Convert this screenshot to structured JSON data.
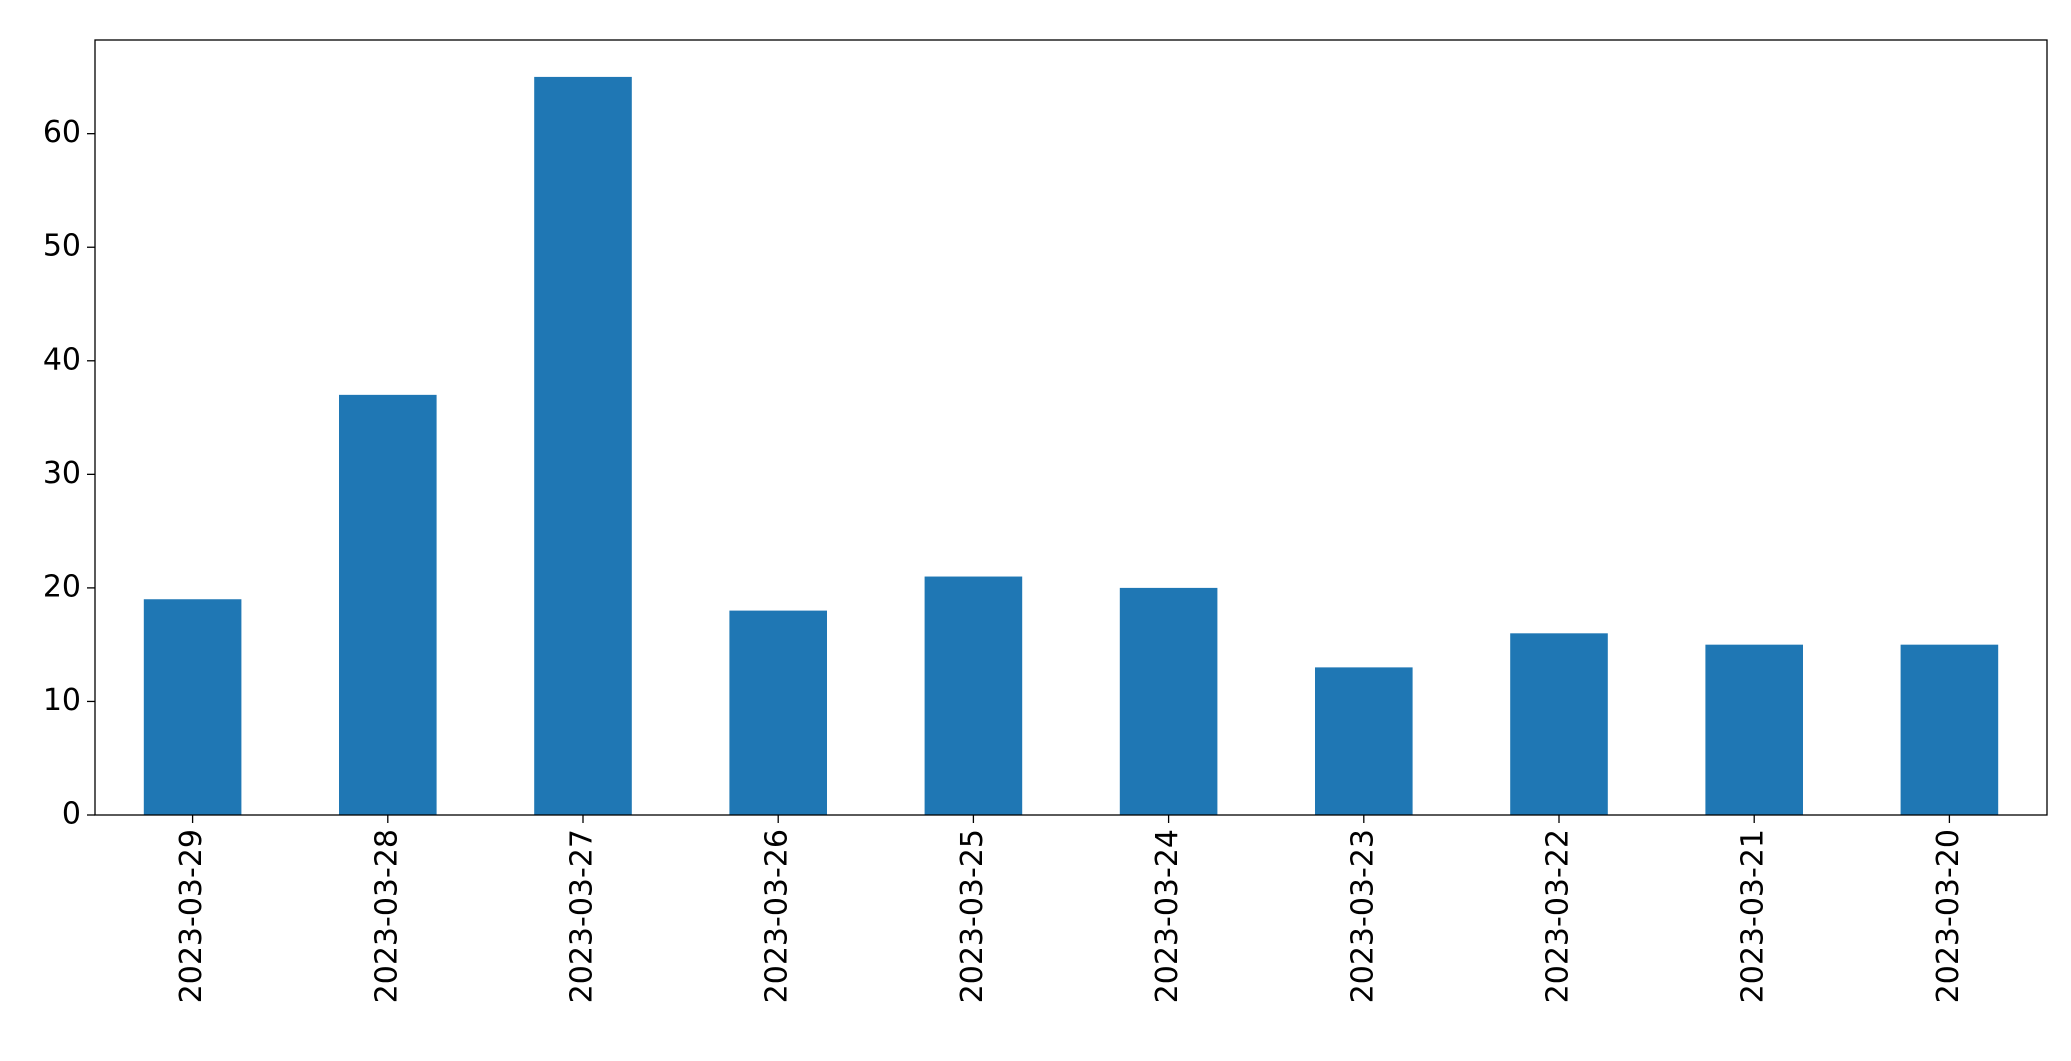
{
  "chart_data": {
    "type": "bar",
    "categories": [
      "2023-03-29",
      "2023-03-28",
      "2023-03-27",
      "2023-03-26",
      "2023-03-25",
      "2023-03-24",
      "2023-03-23",
      "2023-03-22",
      "2023-03-21",
      "2023-03-20"
    ],
    "values": [
      19,
      37,
      65,
      18,
      21,
      20,
      13,
      16,
      15,
      15
    ],
    "color": "#1f77b4",
    "ylim": [
      0,
      68.25
    ],
    "yticks": [
      0,
      10,
      20,
      30,
      40,
      50,
      60
    ],
    "grid": false
  }
}
